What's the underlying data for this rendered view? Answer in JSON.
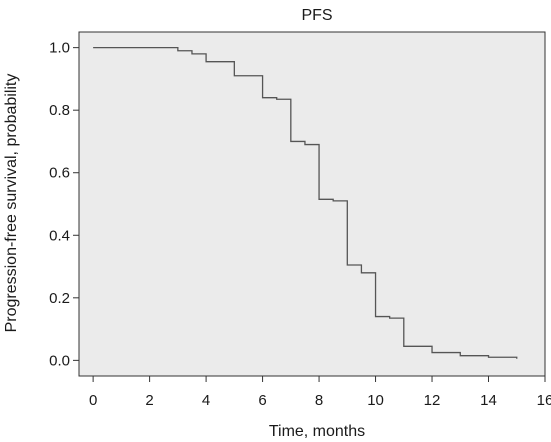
{
  "chart_data": {
    "type": "line",
    "title": "PFS",
    "xlabel": "Time, months",
    "ylabel": "Progression-free survival, probability",
    "xlim": [
      -0.5,
      16
    ],
    "ylim": [
      -0.05,
      1.05
    ],
    "xticks": [
      0,
      2,
      4,
      6,
      8,
      10,
      12,
      14,
      16
    ],
    "yticks": [
      0.0,
      0.2,
      0.4,
      0.6,
      0.8,
      1.0
    ],
    "xtick_labels": [
      "0",
      "2",
      "4",
      "6",
      "8",
      "10",
      "12",
      "14",
      "16"
    ],
    "ytick_labels": [
      "0.0",
      "0.2",
      "0.4",
      "0.6",
      "0.8",
      "1.0"
    ],
    "grid": false,
    "step": true,
    "series": [
      {
        "x": [
          0,
          3.0,
          3.5,
          4.0,
          5.0,
          6.0,
          6.5,
          7.0,
          7.5,
          8.0,
          8.5,
          9.0,
          9.5,
          10.0,
          10.5,
          11.0,
          12.0,
          13.0,
          14.0,
          15.0
        ],
        "y": [
          1.0,
          0.99,
          0.98,
          0.955,
          0.91,
          0.84,
          0.835,
          0.7,
          0.69,
          0.515,
          0.51,
          0.305,
          0.28,
          0.14,
          0.135,
          0.045,
          0.025,
          0.015,
          0.01,
          0.005
        ],
        "color": "#555555"
      }
    ],
    "background": "#ebebeb"
  }
}
